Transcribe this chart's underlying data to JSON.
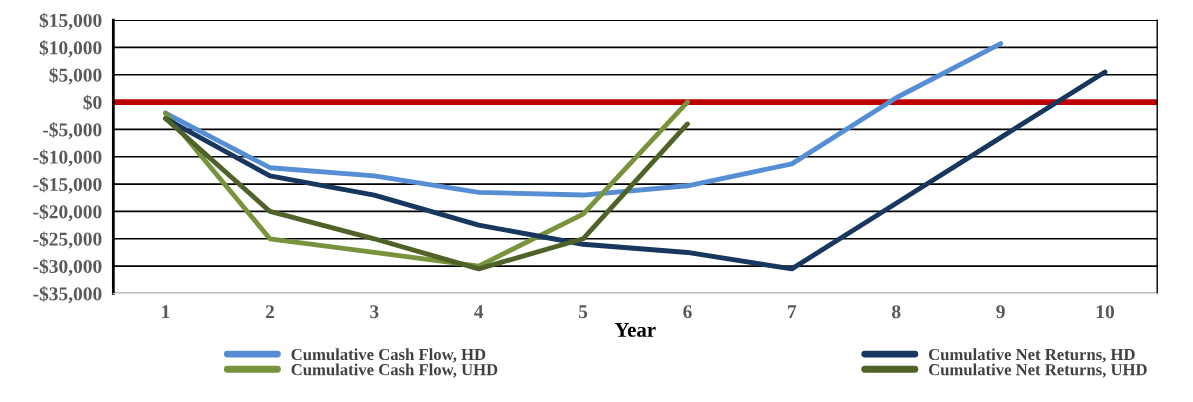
{
  "chart_data": {
    "type": "line",
    "xlabel": "Year",
    "categories": [
      "1",
      "2",
      "3",
      "4",
      "5",
      "6",
      "7",
      "8",
      "9",
      "10"
    ],
    "series": [
      {
        "name": "Cumulative Cash Flow, HD",
        "color": "#558ed5",
        "values": [
          -2000,
          -12000,
          -13500,
          -16500,
          -17000,
          -15300,
          -11300,
          800,
          10700,
          null
        ]
      },
      {
        "name": "Cumulative Cash Flow, UHD",
        "color": "#77933c",
        "values": [
          -2000,
          -25000,
          -27500,
          -30000,
          -20500,
          0,
          null,
          null,
          null,
          null
        ]
      },
      {
        "name": "Cumulative Net Returns, HD",
        "color": "#17375e",
        "values": [
          -3000,
          -13500,
          -17000,
          -22500,
          -26000,
          -27500,
          -30500,
          -18500,
          -6500,
          5500
        ]
      },
      {
        "name": "Cumulative Net Returns, UHD",
        "color": "#4f6228",
        "values": [
          -3000,
          -20000,
          -25000,
          -30500,
          -25000,
          -4000,
          null,
          null,
          null,
          null
        ]
      }
    ],
    "ylim": [
      -35000,
      15000
    ],
    "yticks": [
      {
        "value": -35000,
        "label": "-$35,000"
      },
      {
        "value": -30000,
        "label": "-$30,000"
      },
      {
        "value": -25000,
        "label": "-$25,000"
      },
      {
        "value": -20000,
        "label": "-$20,000"
      },
      {
        "value": -15000,
        "label": "-$15,000"
      },
      {
        "value": -10000,
        "label": "-$10,000"
      },
      {
        "value": -5000,
        "label": "-$5,000"
      },
      {
        "value": 0,
        "label": "$0"
      },
      {
        "value": 5000,
        "label": "$5,000"
      },
      {
        "value": 10000,
        "label": "$10,000"
      },
      {
        "value": 15000,
        "label": "$15,000"
      }
    ],
    "ref_lines": [
      {
        "axis": "y",
        "value": 0,
        "color": "#c00000"
      }
    ],
    "grid": "y",
    "legend": "bottom",
    "marker": "none",
    "line_style": "solid"
  }
}
